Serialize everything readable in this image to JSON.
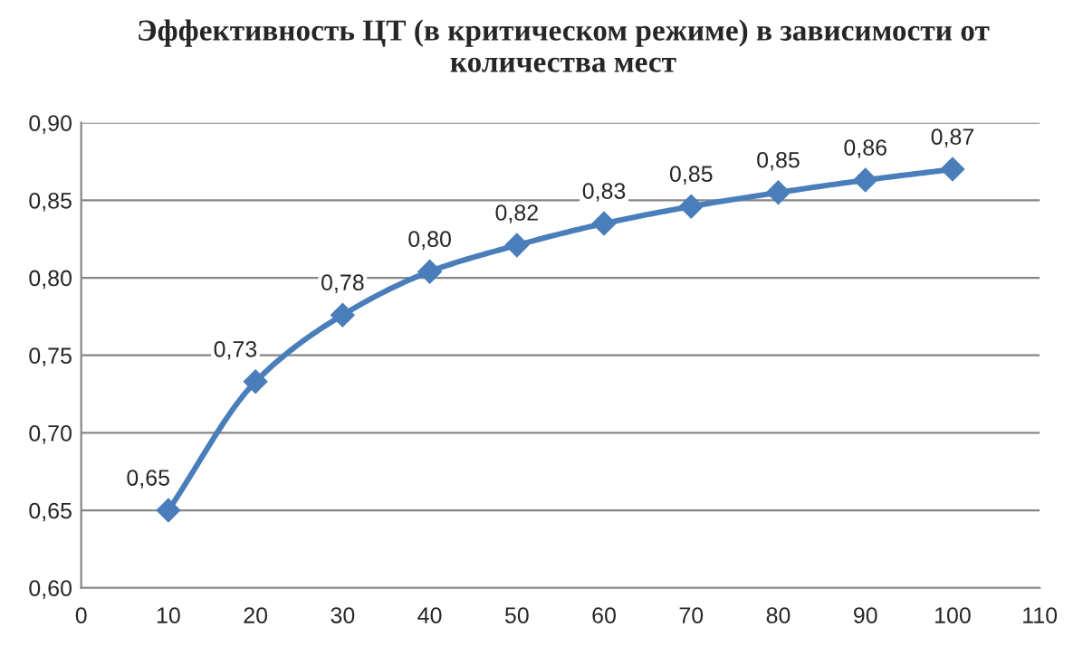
{
  "chart_data": {
    "type": "line",
    "title": "Эффективность ЦТ (в критическом режиме) в зависимости от\nколичества мест",
    "x": [
      10,
      20,
      30,
      40,
      50,
      60,
      70,
      80,
      90,
      100
    ],
    "series": [
      {
        "color": "#4a7ebb",
        "values": [
          0.65,
          0.733,
          0.776,
          0.804,
          0.821,
          0.835,
          0.846,
          0.855,
          0.863,
          0.87
        ],
        "value_labels": [
          "0,65",
          "0,73",
          "0,78",
          "0,80",
          "0,82",
          "0,83",
          "0,85",
          "0,85",
          "0,86",
          "0,87"
        ]
      }
    ],
    "xlim": [
      0,
      110
    ],
    "xticks": [
      0,
      10,
      20,
      30,
      40,
      50,
      60,
      70,
      80,
      90,
      100,
      110
    ],
    "ylim": [
      0.6,
      0.9
    ],
    "yticks": [
      {
        "value": 0.6,
        "label": "0,60"
      },
      {
        "value": 0.65,
        "label": "0,65"
      },
      {
        "value": 0.7,
        "label": "0,70"
      },
      {
        "value": 0.75,
        "label": "0,75"
      },
      {
        "value": 0.8,
        "label": "0,80"
      },
      {
        "value": 0.85,
        "label": "0,85"
      },
      {
        "value": 0.9,
        "label": "0,90"
      }
    ],
    "grid": "y",
    "marker": "diamond",
    "line_style": "solid"
  }
}
